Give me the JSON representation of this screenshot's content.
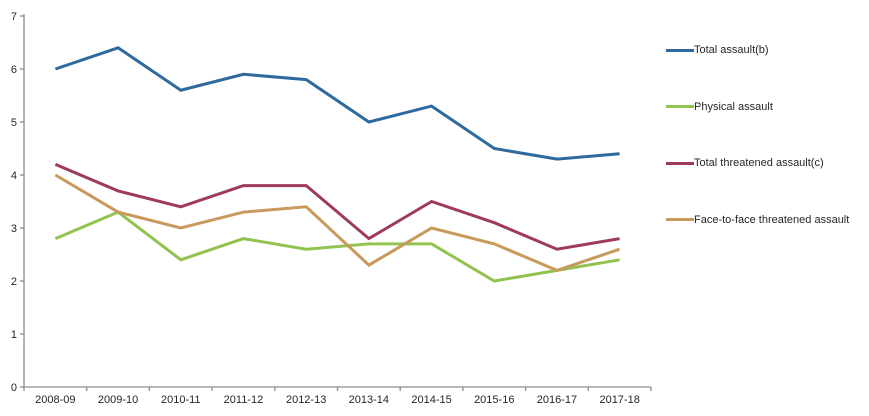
{
  "chart_data": {
    "type": "line",
    "title": "",
    "xlabel": "",
    "ylabel": "",
    "grid": false,
    "legend_position": "right",
    "ylim": [
      0,
      7
    ],
    "yticks": [
      0,
      1,
      2,
      3,
      4,
      5,
      6,
      7
    ],
    "categories": [
      "2008-09",
      "2009-10",
      "2010-11",
      "2011-12",
      "2012-13",
      "2013-14",
      "2014-15",
      "2015-16",
      "2016-17",
      "2017-18"
    ],
    "series": [
      {
        "name": "Total assault(b)",
        "color": "#2e6a9e",
        "values": [
          6.0,
          6.4,
          5.6,
          5.9,
          5.8,
          5.0,
          5.3,
          4.5,
          4.3,
          4.4
        ]
      },
      {
        "name": "Physical assault",
        "color": "#92c350",
        "values": [
          2.8,
          3.3,
          2.4,
          2.8,
          2.6,
          2.7,
          2.7,
          2.0,
          2.2,
          2.4
        ]
      },
      {
        "name": "Total threatened assault(c)",
        "color": "#9e3a5f",
        "values": [
          4.2,
          3.7,
          3.4,
          3.8,
          3.8,
          2.8,
          3.5,
          3.1,
          2.6,
          2.8
        ]
      },
      {
        "name": "Face-to-face threatened assault",
        "color": "#c9995c",
        "values": [
          4.0,
          3.3,
          3.0,
          3.3,
          3.4,
          2.3,
          3.0,
          2.7,
          2.2,
          2.6
        ]
      }
    ],
    "axis_color": "#8c8c8c"
  }
}
